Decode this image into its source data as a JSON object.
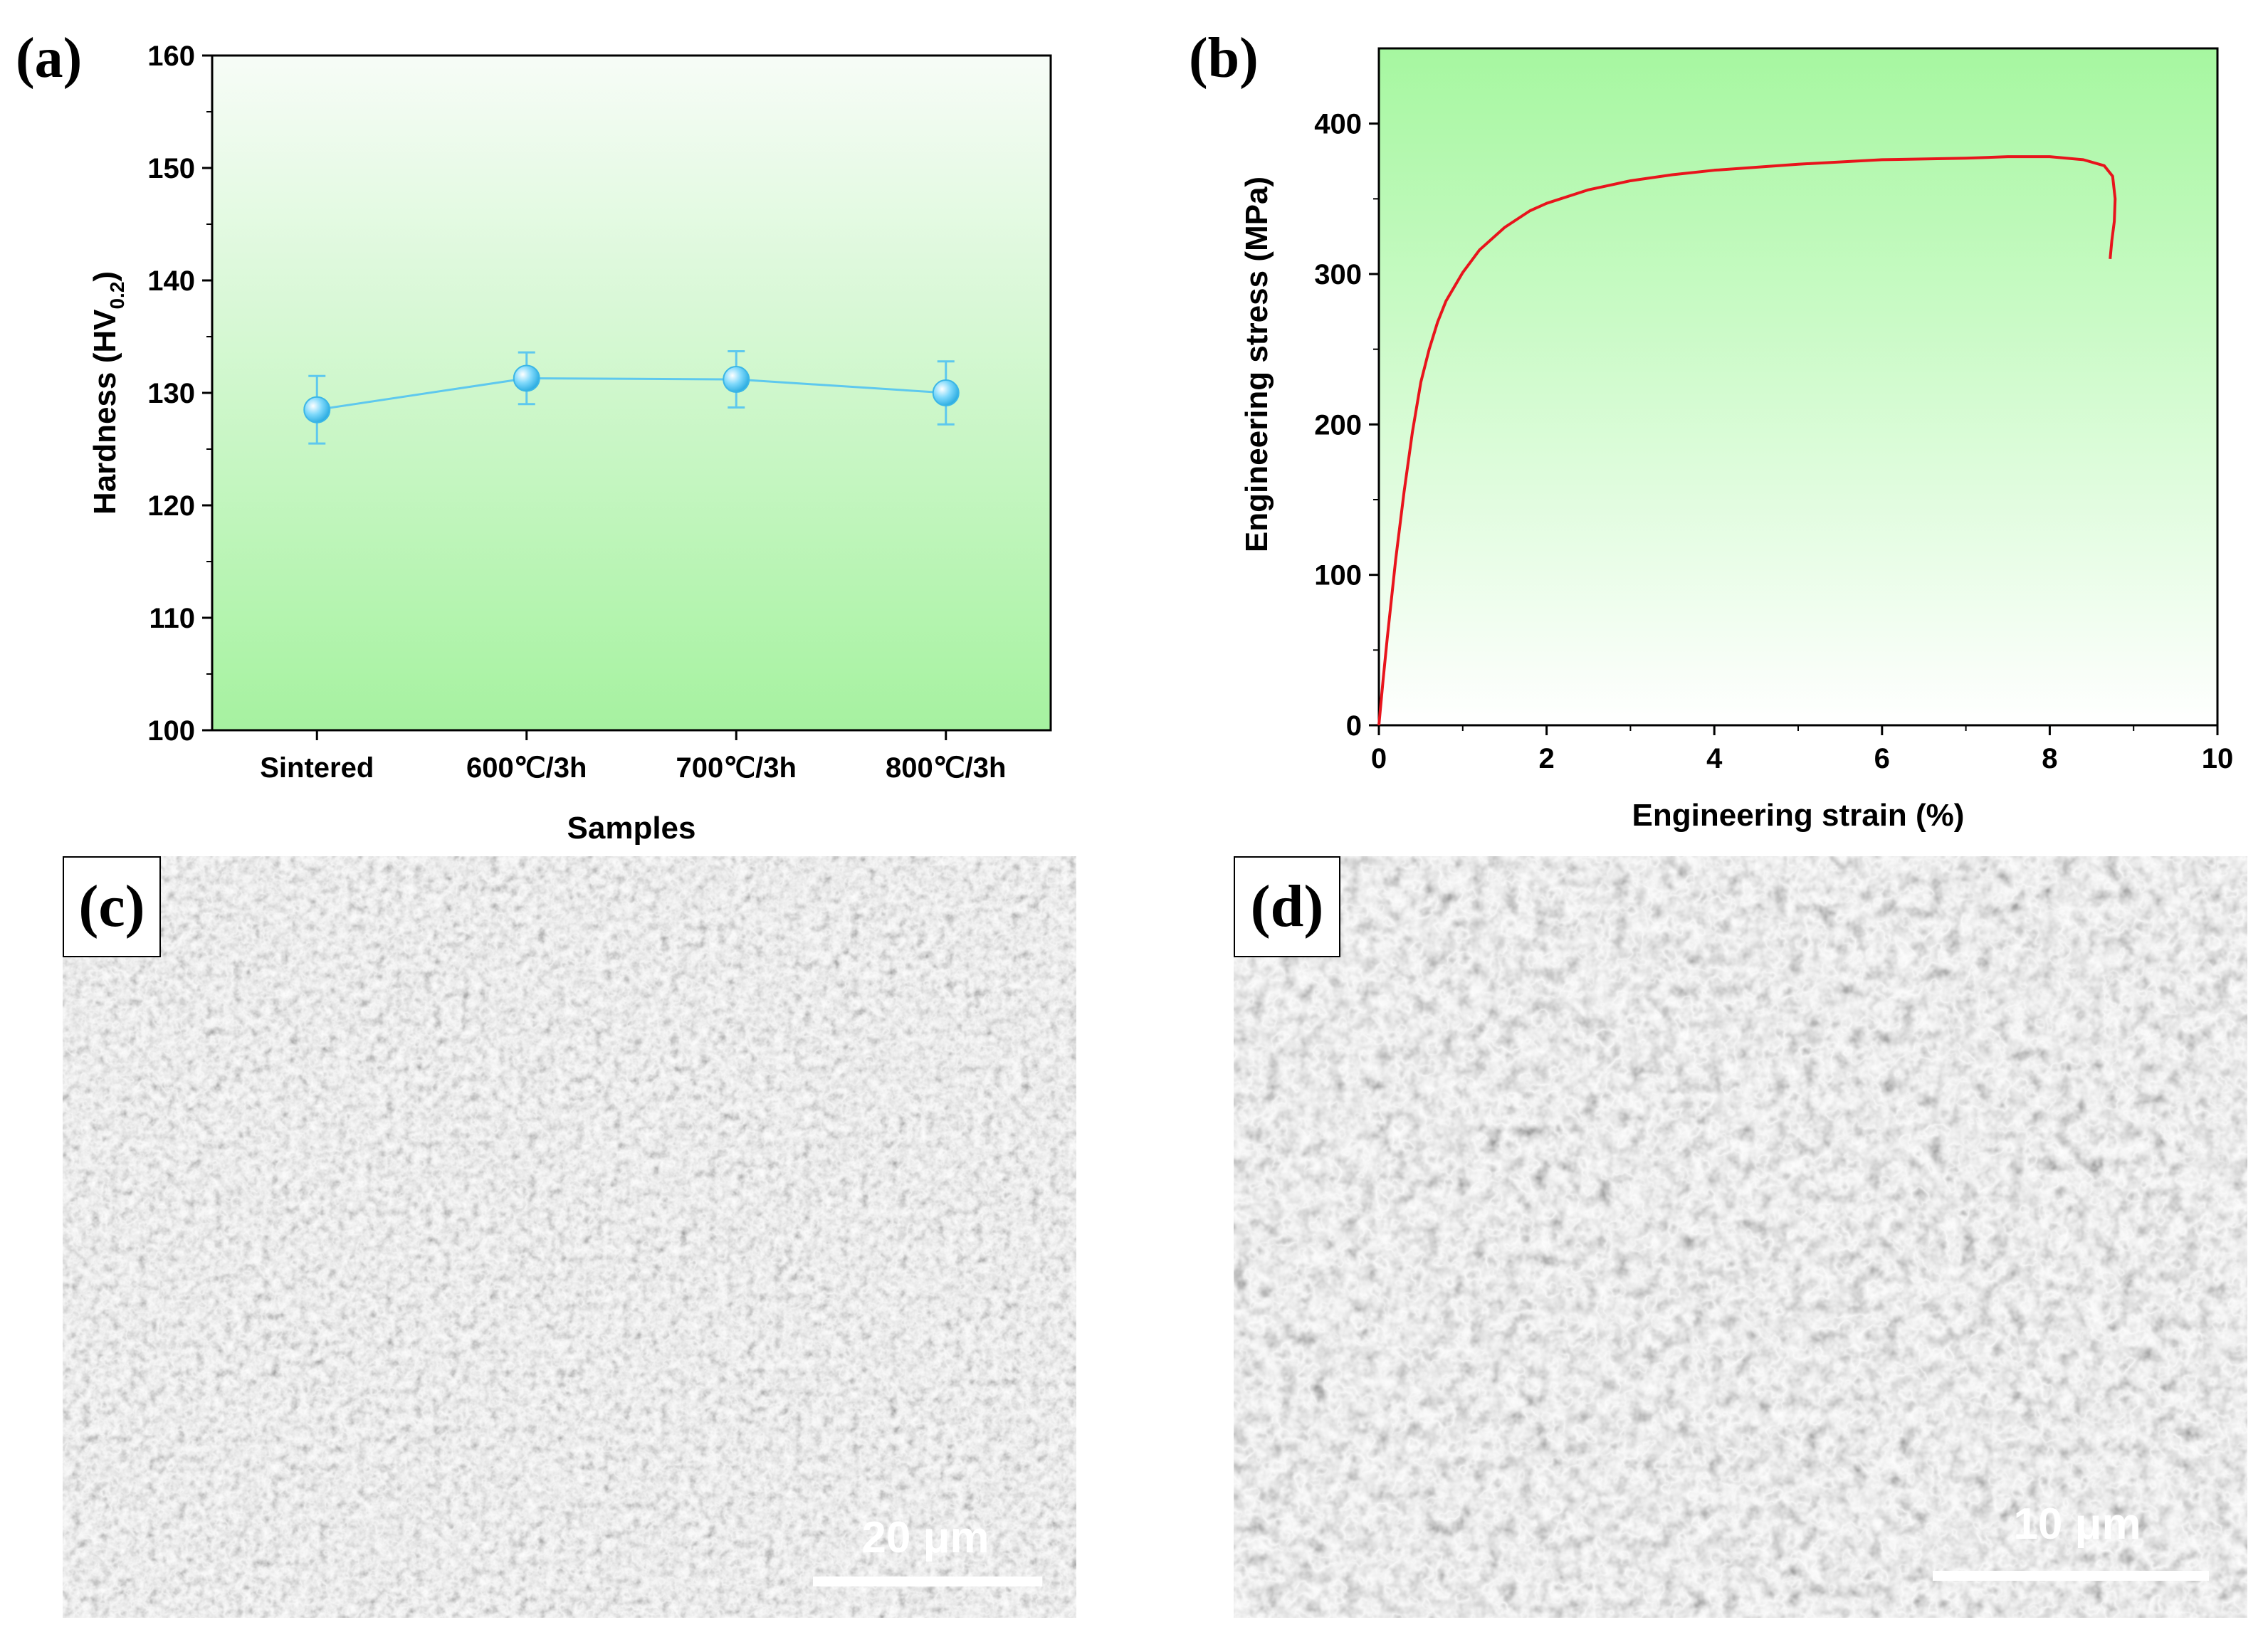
{
  "chart_data": [
    {
      "panel": "(a)",
      "type": "line",
      "xlabel": "Samples",
      "ylabel_main": "Hardness (HV",
      "ylabel_sub": "0.2",
      "ylabel_end": ")",
      "categories": [
        "Sintered",
        "600℃/3h",
        "700℃/3h",
        "800℃/3h"
      ],
      "series": [
        {
          "values": [
            128.5,
            131.3,
            131.2,
            130.0
          ],
          "errors": [
            3.0,
            2.3,
            2.5,
            2.8
          ]
        }
      ],
      "ylim": [
        100,
        160
      ],
      "yticks": [
        100,
        110,
        120,
        130,
        140,
        150,
        160
      ],
      "grid": false,
      "background_gradient": [
        "#f7fcf7",
        "#a6f2a0"
      ],
      "line_color": "#5ec8ee"
    },
    {
      "panel": "(b)",
      "type": "line",
      "xlabel": "Engineering strain (%)",
      "ylabel": "Engineering stress (MPa)",
      "xlim": [
        0,
        10
      ],
      "ylim": [
        0,
        450
      ],
      "xticks": [
        0,
        2,
        4,
        6,
        8,
        10
      ],
      "yticks": [
        0,
        100,
        200,
        300,
        400
      ],
      "grid": false,
      "background_gradient": [
        "#a6f7a0",
        "#ffffff"
      ],
      "series": [
        {
          "color": "#e8141c",
          "x": [
            0,
            0.05,
            0.1,
            0.2,
            0.3,
            0.4,
            0.5,
            0.6,
            0.7,
            0.8,
            1.0,
            1.2,
            1.5,
            1.8,
            2.0,
            2.5,
            3.0,
            3.5,
            4.0,
            5.0,
            6.0,
            7.0,
            7.5,
            8.0,
            8.4,
            8.65,
            8.75,
            8.78,
            8.77,
            8.74,
            8.72
          ],
          "y": [
            0,
            30,
            58,
            110,
            155,
            195,
            228,
            250,
            268,
            282,
            301,
            316,
            331,
            342,
            347,
            356,
            362,
            366,
            369,
            373,
            376,
            377,
            378,
            378,
            376,
            372,
            365,
            350,
            335,
            322,
            310
          ]
        }
      ]
    }
  ],
  "images": {
    "c": {
      "label": "(c)",
      "scale_text": "20 μm"
    },
    "d": {
      "label": "(d)",
      "scale_text": "10 μm"
    }
  }
}
